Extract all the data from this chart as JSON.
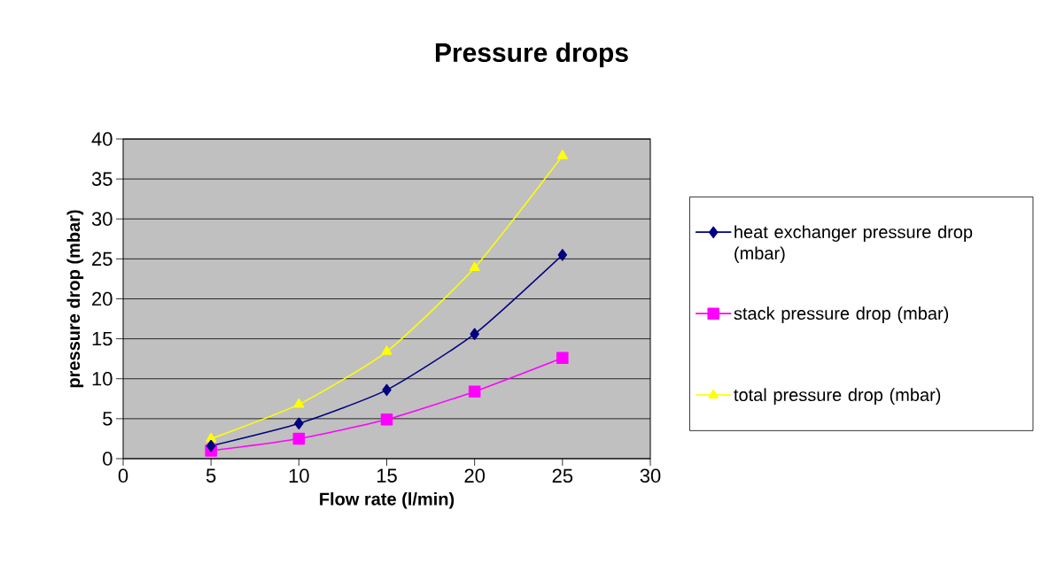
{
  "chart_data": {
    "type": "line",
    "title": "Pressure drops",
    "xlabel": "Flow rate (l/min)",
    "ylabel": "pressure drop (mbar)",
    "x": [
      5,
      10,
      15,
      20,
      25
    ],
    "series": [
      {
        "name": "heat exchanger pressure drop (mbar)",
        "color": "#000080",
        "marker": "diamond",
        "values": [
          1.6,
          4.4,
          8.6,
          15.6,
          25.5
        ]
      },
      {
        "name": "stack pressure drop (mbar)",
        "color": "#ff00ff",
        "marker": "square",
        "values": [
          1.0,
          2.5,
          4.9,
          8.4,
          12.6
        ]
      },
      {
        "name": "total pressure drop (mbar)",
        "color": "#ffff00",
        "marker": "triangle",
        "values": [
          2.5,
          6.8,
          13.4,
          23.9,
          37.9
        ]
      }
    ],
    "xlim": [
      0,
      30
    ],
    "ylim": [
      0,
      40
    ],
    "xticks": [
      0,
      5,
      10,
      15,
      20,
      25,
      30
    ],
    "yticks": [
      0,
      5,
      10,
      15,
      20,
      25,
      30,
      35,
      40
    ],
    "grid": "y",
    "legend": "right",
    "line_style": "solid"
  }
}
